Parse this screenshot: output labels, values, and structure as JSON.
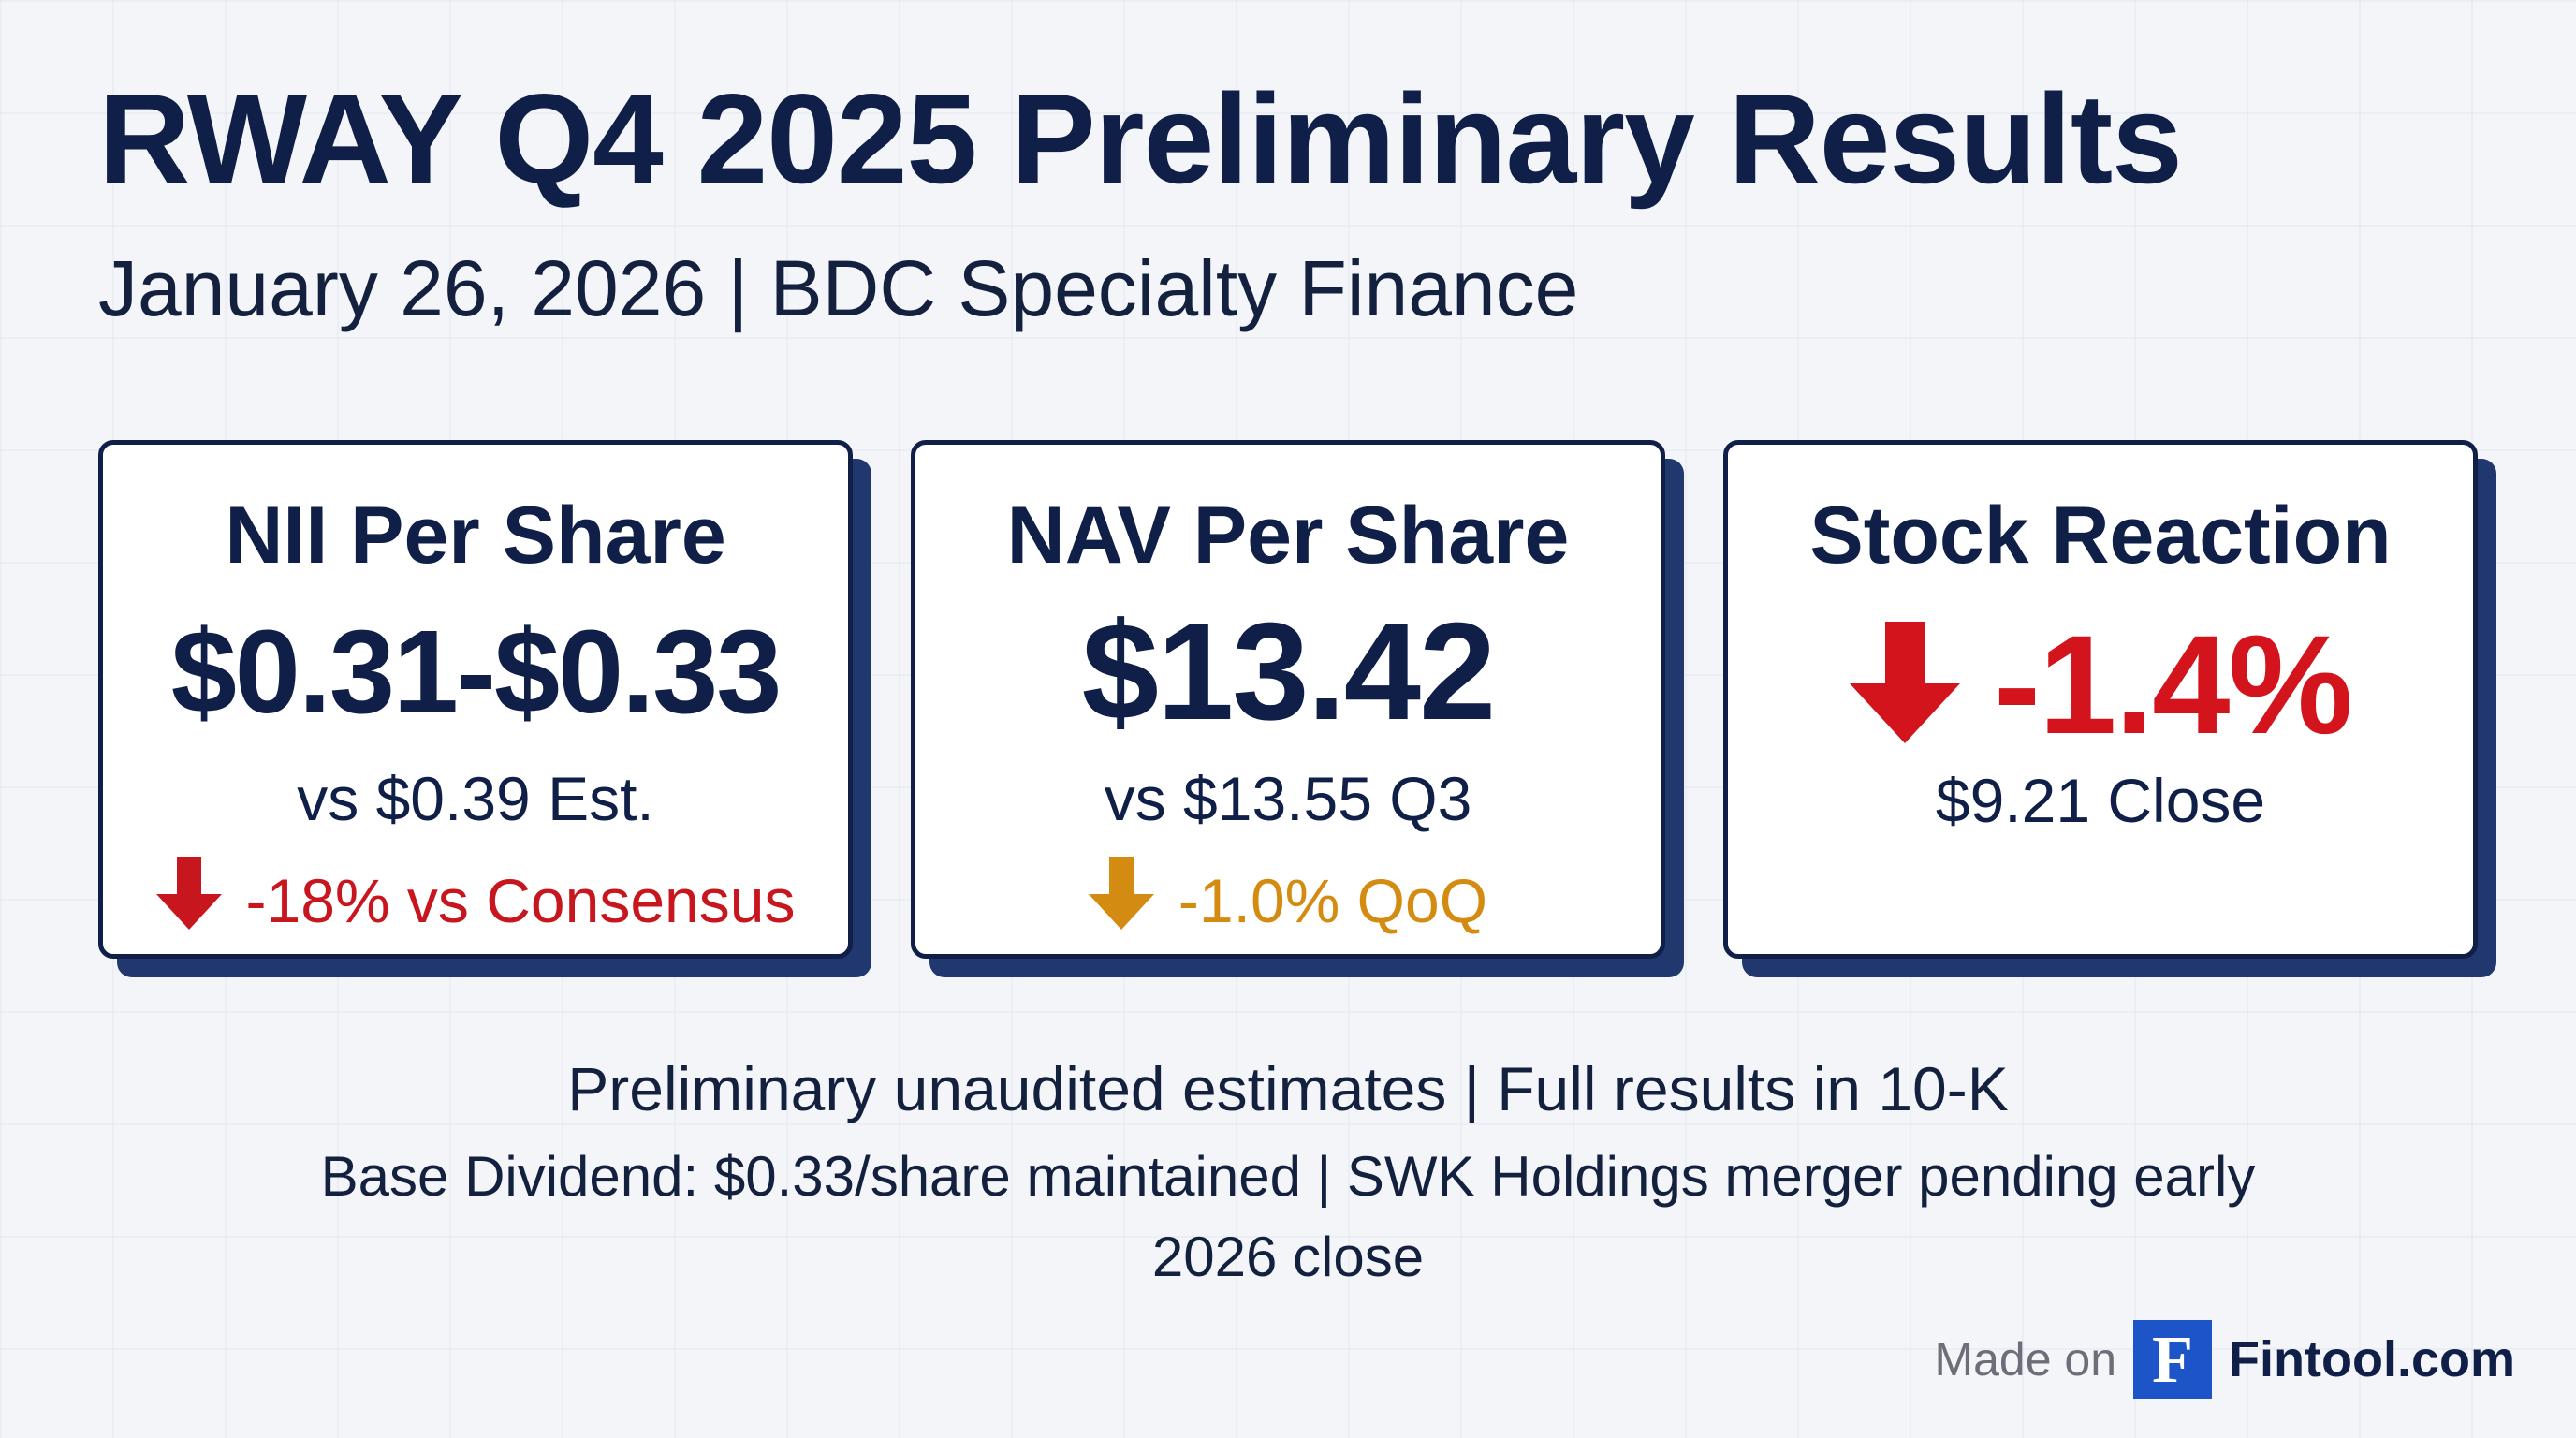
{
  "header": {
    "title": "RWAY Q4 2025 Preliminary Results",
    "subtitle": "January 26, 2026 | BDC Specialty Finance"
  },
  "cards": [
    {
      "label": "NII Per Share",
      "value": "$0.31-$0.33",
      "compare": "vs $0.39 Est.",
      "delta": "-18% vs Consensus",
      "delta_icon": "arrow-down-icon",
      "delta_color": "#c8161e"
    },
    {
      "label": "NAV Per Share",
      "value": "$13.42",
      "compare": "vs $13.55 Q3",
      "delta": "-1.0% QoQ",
      "delta_icon": "arrow-down-icon",
      "delta_color": "#d38b12"
    },
    {
      "label": "Stock Reaction",
      "value": "-1.4%",
      "value_icon": "arrow-down-icon",
      "value_color": "#d3141c",
      "close": "$9.21 Close"
    }
  ],
  "footer": {
    "line1": "Preliminary unaudited estimates | Full results in 10-K",
    "line2": "Base Dividend: $0.33/share maintained | SWK Holdings merger pending early",
    "line3": "2026 close"
  },
  "brand": {
    "made_on": "Made on",
    "logo_letter": "F",
    "name": "Fintool.com",
    "logo_color": "#1d55c9"
  }
}
